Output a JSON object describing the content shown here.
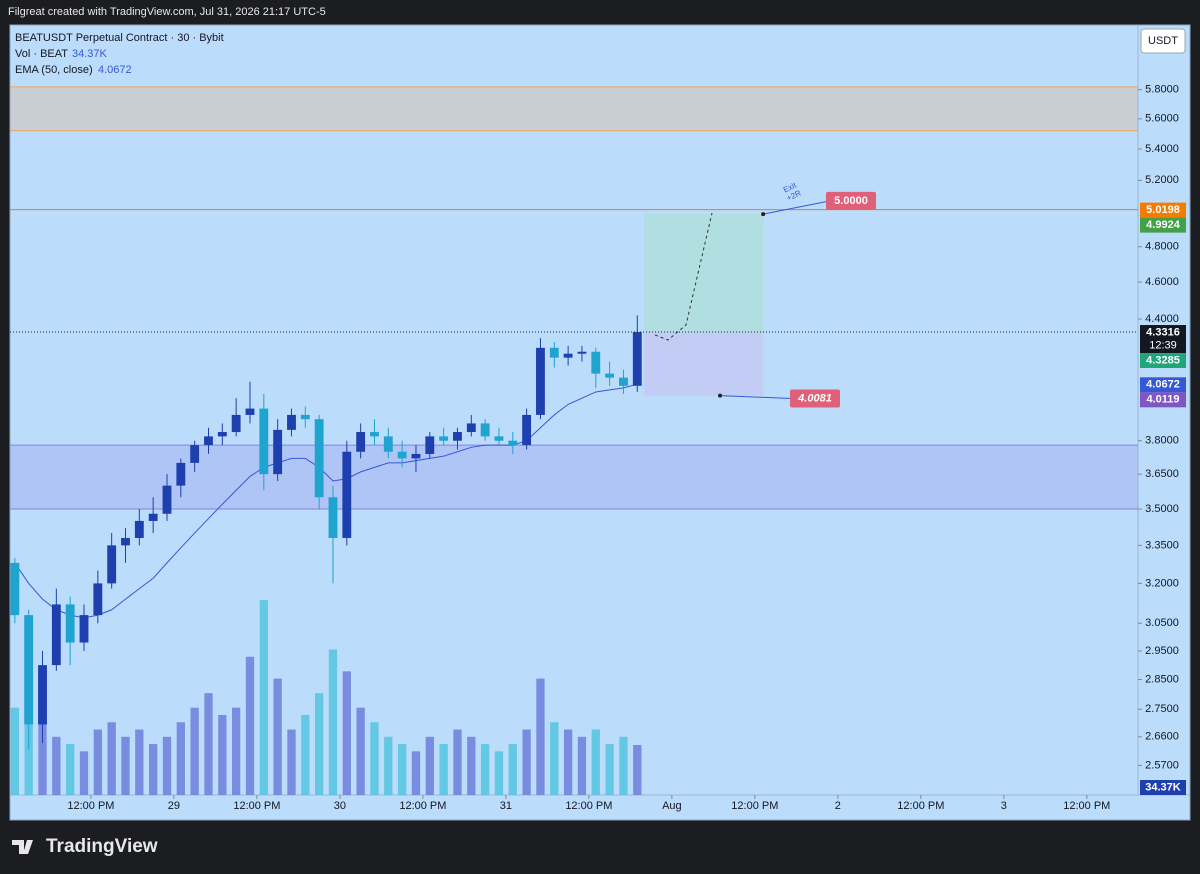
{
  "header": "Filgreat created with TradingView.com, Jul 31, 2026 21:17 UTC-5",
  "brand": "TradingView",
  "chart_data": {
    "type": "candlestick",
    "title": "BEATUSDT Perpetual Contract · 30 · Bybit",
    "currency": "USDT",
    "log_scale": true,
    "grid": false,
    "up_color": "#1e3fae",
    "down_color": "#1fa3cf",
    "x": [
      1,
      3,
      5,
      7,
      9,
      11,
      13,
      15,
      17,
      19,
      21,
      23,
      25,
      27,
      29,
      31,
      33,
      35,
      37,
      39,
      41,
      43,
      45,
      47,
      49,
      51,
      53,
      55,
      57,
      59,
      61,
      63,
      65,
      67,
      69,
      71,
      73,
      75,
      77,
      79,
      81,
      83,
      85,
      87,
      89,
      91
    ],
    "open": [
      3.28,
      3.08,
      2.7,
      2.9,
      3.12,
      2.98,
      3.08,
      3.2,
      3.35,
      3.38,
      3.45,
      3.48,
      3.6,
      3.7,
      3.78,
      3.82,
      3.84,
      3.92,
      3.95,
      3.65,
      3.85,
      3.92,
      3.9,
      3.55,
      3.38,
      3.75,
      3.84,
      3.82,
      3.75,
      3.72,
      3.74,
      3.82,
      3.8,
      3.84,
      3.88,
      3.82,
      3.8,
      3.78,
      3.92,
      4.25,
      4.2,
      4.22,
      4.23,
      4.12,
      4.1,
      4.06
    ],
    "high": [
      3.3,
      3.1,
      2.95,
      3.18,
      3.15,
      3.12,
      3.25,
      3.4,
      3.42,
      3.5,
      3.55,
      3.65,
      3.72,
      3.8,
      3.86,
      3.88,
      4.0,
      4.08,
      4.02,
      3.9,
      3.95,
      3.96,
      3.92,
      3.6,
      3.8,
      3.88,
      3.9,
      3.86,
      3.8,
      3.78,
      3.84,
      3.86,
      3.86,
      3.92,
      3.9,
      3.86,
      3.84,
      3.95,
      4.3,
      4.28,
      4.26,
      4.26,
      4.25,
      4.18,
      4.14,
      4.42
    ],
    "low": [
      3.05,
      2.62,
      2.64,
      2.88,
      2.9,
      2.95,
      3.05,
      3.18,
      3.28,
      3.35,
      3.4,
      3.45,
      3.55,
      3.66,
      3.74,
      3.78,
      3.82,
      3.88,
      3.58,
      3.62,
      3.82,
      3.86,
      3.5,
      3.2,
      3.35,
      3.72,
      3.78,
      3.72,
      3.68,
      3.66,
      3.72,
      3.78,
      3.76,
      3.82,
      3.8,
      3.78,
      3.74,
      3.76,
      3.9,
      4.15,
      4.16,
      4.18,
      4.05,
      4.06,
      4.02,
      4.03
    ],
    "close": [
      3.08,
      2.7,
      2.9,
      3.12,
      2.98,
      3.08,
      3.2,
      3.35,
      3.38,
      3.45,
      3.48,
      3.6,
      3.7,
      3.78,
      3.82,
      3.84,
      3.92,
      3.95,
      3.65,
      3.85,
      3.92,
      3.9,
      3.55,
      3.38,
      3.75,
      3.84,
      3.82,
      3.75,
      3.72,
      3.74,
      3.82,
      3.8,
      3.84,
      3.88,
      3.82,
      3.8,
      3.78,
      3.92,
      4.25,
      4.2,
      4.22,
      4.23,
      4.12,
      4.1,
      4.06,
      4.3316
    ],
    "volume": {
      "name": "Vol · BEAT",
      "up_color": "#6a78d8",
      "down_color": "#4ec3dd",
      "lim": [
        0,
        200000
      ],
      "values": [
        60000,
        90000,
        55000,
        40000,
        35000,
        30000,
        45000,
        50000,
        40000,
        45000,
        35000,
        40000,
        50000,
        60000,
        70000,
        55000,
        60000,
        95000,
        134000,
        80000,
        45000,
        55000,
        70000,
        100000,
        85000,
        60000,
        50000,
        40000,
        35000,
        30000,
        40000,
        35000,
        45000,
        40000,
        35000,
        30000,
        35000,
        45000,
        80000,
        50000,
        45000,
        40000,
        45000,
        35000,
        40000,
        34370
      ],
      "last_label": "34.37K"
    },
    "ema": {
      "name": "EMA (50, close)",
      "color": "#3559d6",
      "values": [
        3.28,
        3.2,
        3.14,
        3.1,
        3.08,
        3.07,
        3.08,
        3.1,
        3.14,
        3.18,
        3.22,
        3.28,
        3.34,
        3.4,
        3.46,
        3.52,
        3.58,
        3.64,
        3.68,
        3.7,
        3.72,
        3.72,
        3.68,
        3.62,
        3.63,
        3.66,
        3.68,
        3.7,
        3.7,
        3.71,
        3.72,
        3.73,
        3.75,
        3.77,
        3.78,
        3.78,
        3.78,
        3.8,
        3.86,
        3.92,
        3.97,
        4.0,
        4.03,
        4.04,
        4.05,
        4.0672
      ]
    },
    "last_price_color": "#131722",
    "countdown": "12:39",
    "zones": [
      {
        "low": 5.52,
        "high": 5.82,
        "color": "#f0a25c"
      },
      {
        "low": 3.5,
        "high": 3.78,
        "color": "#8a80e6"
      }
    ],
    "levels": [
      {
        "value": 5.0198,
        "color": "#f57c00"
      }
    ],
    "position": {
      "x_start": 92,
      "x_end": 109.2,
      "entry": 4.3285,
      "target": 4.9924,
      "stop": 4.0119,
      "target_color": "#43a047",
      "entry_color": "#1fa67a",
      "stop_color": "#7e57c2"
    },
    "target_callout": {
      "value": 5,
      "label": "5.0000"
    },
    "stop_callout": 4.0081,
    "callout_color": "#e0607a",
    "exit_note": [
      "Exit",
      "+2R"
    ],
    "xlim": [
      0.3,
      163.4
    ],
    "xticks": [
      {
        "value": 12,
        "label": "12:00 PM"
      },
      {
        "value": 24,
        "label": "29"
      },
      {
        "value": 36,
        "label": "12:00 PM"
      },
      {
        "value": 48,
        "label": "30"
      },
      {
        "value": 60,
        "label": "12:00 PM"
      },
      {
        "value": 72,
        "label": "31"
      },
      {
        "value": 84,
        "label": "12:00 PM"
      },
      {
        "value": 96,
        "label": "Aug"
      },
      {
        "value": 108,
        "label": "12:00 PM"
      },
      {
        "value": 120,
        "label": "2"
      },
      {
        "value": 132,
        "label": "12:00 PM"
      },
      {
        "value": 144,
        "label": "3"
      },
      {
        "value": 156,
        "label": "12:00 PM"
      }
    ],
    "ylim": [
      2.48,
      6.27
    ],
    "yticks": [
      {
        "value": 5.8,
        "label": "5.8000"
      },
      {
        "value": 5.6,
        "label": "5.6000"
      },
      {
        "value": 5.4,
        "label": "5.4000"
      },
      {
        "value": 5.2,
        "label": "5.2000"
      },
      {
        "value": 4.8,
        "label": "4.8000"
      },
      {
        "value": 4.6,
        "label": "4.6000"
      },
      {
        "value": 4.4,
        "label": "4.4000"
      },
      {
        "value": 3.8,
        "label": "3.8000"
      },
      {
        "value": 3.65,
        "label": "3.6500"
      },
      {
        "value": 3.5,
        "label": "3.5000"
      },
      {
        "value": 3.35,
        "label": "3.3500"
      },
      {
        "value": 3.2,
        "label": "3.2000"
      },
      {
        "value": 3.05,
        "label": "3.0500"
      },
      {
        "value": 2.95,
        "label": "2.9500"
      },
      {
        "value": 2.85,
        "label": "2.8500"
      },
      {
        "value": 2.75,
        "label": "2.7500"
      },
      {
        "value": 2.66,
        "label": "2.6600"
      },
      {
        "value": 2.57,
        "label": "2.5700"
      }
    ]
  }
}
